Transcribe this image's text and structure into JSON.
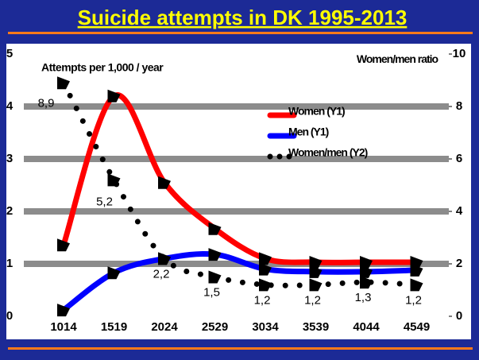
{
  "chart_data": {
    "type": "line",
    "title": "Suicide attempts in DK 1995-2013",
    "ylabel": "Attempts per 1,000 / year",
    "y2label": "Women/men ratio",
    "categories": [
      "1014",
      "1519",
      "2024",
      "2529",
      "3034",
      "3539",
      "4044",
      "4549"
    ],
    "series": [
      {
        "name": "Women (Y1)",
        "color": "#ff0000",
        "values": [
          1.36,
          4.2,
          2.55,
          1.67,
          1.1,
          1.03,
          1.03,
          1.03
        ]
      },
      {
        "name": "Men (Y1)",
        "color": "#0000ff",
        "values": [
          0.12,
          0.83,
          1.1,
          1.18,
          0.9,
          0.85,
          0.85,
          0.88
        ]
      },
      {
        "name": "Women/men (Y2)",
        "color": "#000000",
        "axis": "y2",
        "values": [
          8.9,
          5.2,
          2.2,
          1.5,
          1.2,
          1.2,
          1.3,
          1.2
        ],
        "value_labels": [
          "8,9",
          "5,2",
          "2,2",
          "1,5",
          "1,2",
          "1,2",
          "1,3",
          "1,2"
        ]
      }
    ],
    "ylim": [
      0,
      5
    ],
    "yticks": [
      0,
      1,
      2,
      3,
      4,
      5
    ],
    "y2lim": [
      0,
      10
    ],
    "y2ticks": [
      0,
      2,
      4,
      6,
      8,
      10
    ],
    "grid": true
  }
}
